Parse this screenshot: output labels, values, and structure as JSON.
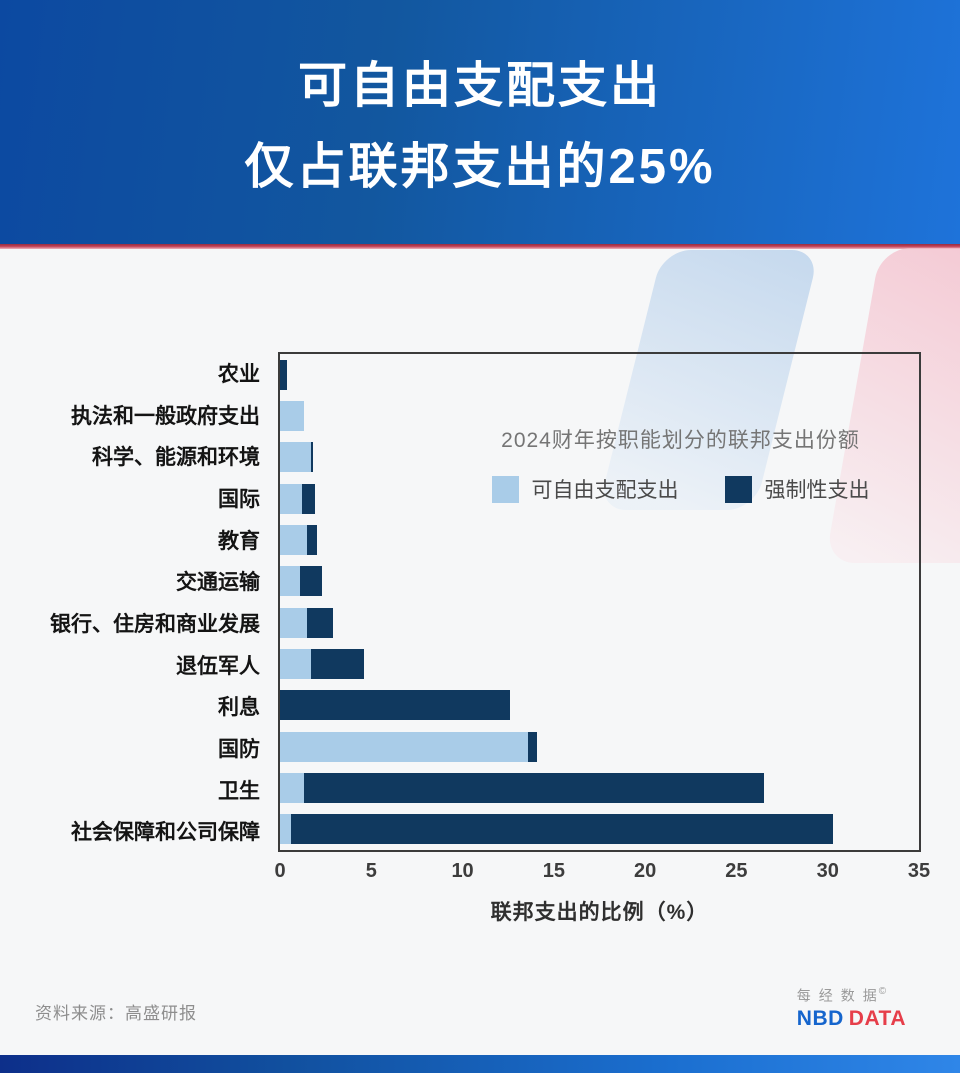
{
  "header": {
    "line1": "可自由支配支出",
    "line2": "仅占联邦支出的25%"
  },
  "chart_data": {
    "type": "bar",
    "orientation": "horizontal",
    "stacked": true,
    "title": "2024财年按职能划分的联邦支出份额",
    "xlabel": "联邦支出的比例（%）",
    "xlim": [
      0,
      35
    ],
    "xticks": [
      0,
      5,
      10,
      15,
      20,
      25,
      30,
      35
    ],
    "grid": false,
    "legend_position": "inside-upper-right",
    "categories": [
      "农业",
      "执法和一般政府支出",
      "科学、能源和环境",
      "国际",
      "教育",
      "交通运输",
      "银行、住房和商业发展",
      "退伍军人",
      "利息",
      "国防",
      "卫生",
      "社会保障和公司保障"
    ],
    "series": [
      {
        "name": "可自由支配支出",
        "color": "#a9cce8",
        "values": [
          0,
          1.3,
          1.7,
          1.2,
          1.5,
          1.1,
          1.5,
          1.7,
          0,
          13.6,
          1.3,
          0.6
        ]
      },
      {
        "name": "强制性支出",
        "color": "#10395f",
        "values": [
          0.4,
          0,
          0.1,
          0.7,
          0.5,
          1.2,
          1.4,
          2.9,
          12.6,
          0.5,
          25.2,
          29.7
        ]
      }
    ]
  },
  "footer": {
    "source": "资料来源：高盛研报",
    "logo_cn": "每经数据",
    "logo_mark": "©",
    "logo_en_1": "NBD",
    "logo_en_2": "DATA"
  },
  "colors": {
    "header_gradient_start": "#0c49a1",
    "header_gradient_end": "#1e73da",
    "divider_red": "#c04055",
    "discretionary_blue": "#a9cce8",
    "mandatory_navy": "#10395f",
    "logo_blue": "#1565cd",
    "logo_red": "#e63e4a"
  }
}
